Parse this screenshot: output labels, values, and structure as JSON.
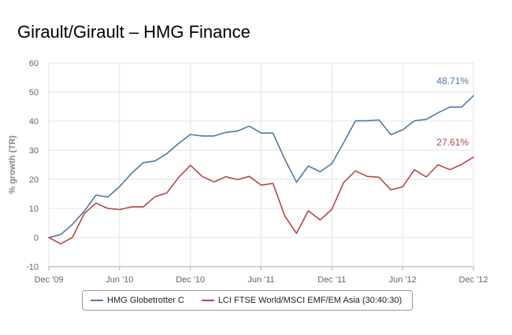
{
  "page": {
    "title": "Girault/Girault – HMG Finance"
  },
  "chart_data": {
    "type": "line",
    "title": "Girault/Girault – HMG Finance",
    "ylabel": "% growth (TR)",
    "xlabel": "",
    "ylim": [
      -10,
      60
    ],
    "y_ticks": [
      -10,
      0,
      10,
      20,
      30,
      40,
      50,
      60
    ],
    "y_tick_labels": [
      "-10",
      "0",
      "10",
      "20",
      "30",
      "40",
      "50",
      "60"
    ],
    "xlim": [
      "2009-12",
      "2012-12"
    ],
    "x_ticks": [
      "2009-12",
      "2010-06",
      "2010-12",
      "2011-06",
      "2011-12",
      "2012-06",
      "2012-12"
    ],
    "x_tick_labels": [
      "Dec '09",
      "Jun '10",
      "Dec '10",
      "Jun '11",
      "Dec '11",
      "Jun '12",
      "Dec '12"
    ],
    "x": [
      "2009-12",
      "2010-01",
      "2010-02",
      "2010-03",
      "2010-04",
      "2010-05",
      "2010-06",
      "2010-07",
      "2010-08",
      "2010-09",
      "2010-10",
      "2010-11",
      "2010-12",
      "2011-01",
      "2011-02",
      "2011-03",
      "2011-04",
      "2011-05",
      "2011-06",
      "2011-07",
      "2011-08",
      "2011-09",
      "2011-10",
      "2011-11",
      "2011-12",
      "2012-01",
      "2012-02",
      "2012-03",
      "2012-04",
      "2012-05",
      "2012-06",
      "2012-07",
      "2012-08",
      "2012-09",
      "2012-10",
      "2012-11",
      "2012-12"
    ],
    "grid": true,
    "legend_position": "bottom",
    "series": [
      {
        "name": "HMG Globetrotter C",
        "color": "#4d79a7",
        "end_label": "48.71%",
        "values": [
          0.0,
          1.0,
          4.5,
          9.0,
          14.6,
          13.9,
          17.5,
          22.0,
          25.7,
          26.3,
          28.8,
          32.3,
          35.4,
          34.9,
          34.9,
          36.1,
          36.6,
          38.3,
          35.9,
          35.9,
          27.0,
          19.0,
          24.6,
          22.6,
          25.4,
          32.6,
          40.1,
          40.1,
          40.4,
          35.3,
          37.0,
          40.1,
          40.6,
          42.9,
          44.8,
          44.8,
          48.71
        ]
      },
      {
        "name": "LCI FTSE World/MSCI EMF/EM Asia (30:40:30)",
        "color": "#b24746",
        "end_label": "27.61%",
        "values": [
          0.0,
          -2.2,
          0.0,
          8.2,
          11.8,
          10.0,
          9.6,
          10.5,
          10.5,
          14.0,
          15.3,
          20.6,
          24.8,
          21.0,
          19.1,
          20.9,
          19.9,
          21.0,
          18.0,
          18.6,
          7.5,
          1.4,
          9.2,
          6.0,
          9.7,
          18.9,
          22.9,
          21.0,
          20.7,
          16.4,
          17.4,
          23.3,
          20.8,
          25.0,
          23.3,
          25.1,
          27.61
        ]
      }
    ]
  }
}
